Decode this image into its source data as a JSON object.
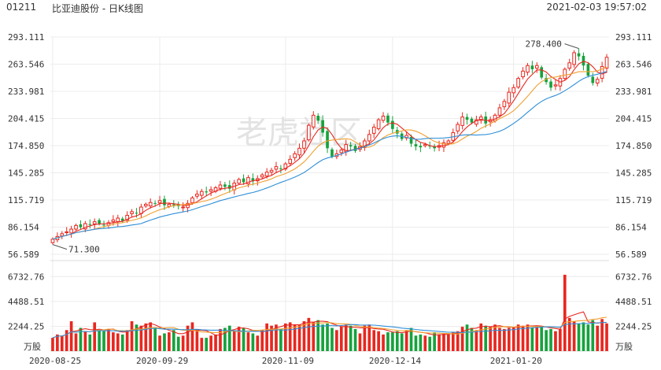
{
  "header": {
    "code": "01211",
    "title": "比亚迪股份 - 日K线图",
    "datetime": "2021-02-03 19:57:02"
  },
  "watermark": "老虎社区",
  "chart_data": [
    {
      "type": "candlestick",
      "y_ticks": [
        "293.111",
        "263.546",
        "233.981",
        "204.415",
        "174.850",
        "145.285",
        "115.719",
        "86.154",
        "56.589"
      ],
      "ylim": [
        56.589,
        293.111
      ],
      "x_ticks": [
        "2020-08-25",
        "2020-09-29",
        "2020-11-09",
        "2020-12-14",
        "2021-01-20"
      ],
      "annotations": {
        "max_label": "278.400",
        "min_label": "71.300"
      },
      "colors": {
        "up": "#e8271f",
        "down": "#16a23d",
        "ma5": "#e8271f",
        "ma10": "#f0a030",
        "ma20": "#2f8fd8"
      },
      "closes": [
        73,
        76,
        79,
        81,
        84,
        88,
        86,
        90,
        89,
        92,
        90,
        88,
        91,
        94,
        96,
        93,
        99,
        103,
        101,
        108,
        111,
        113,
        112,
        115,
        110,
        111,
        110,
        109,
        108,
        112,
        118,
        122,
        125,
        124,
        127,
        129,
        132,
        130,
        128,
        134,
        138,
        135,
        140,
        136,
        139,
        143,
        146,
        148,
        152,
        150,
        155,
        160,
        166,
        172,
        180,
        197,
        208,
        202,
        189,
        172,
        163,
        166,
        170,
        176,
        174,
        169,
        174,
        180,
        187,
        195,
        203,
        207,
        200,
        193,
        188,
        182,
        186,
        177,
        174,
        173,
        176,
        174,
        172,
        175,
        178,
        180,
        189,
        198,
        206,
        203,
        200,
        203,
        206,
        199,
        203,
        208,
        216,
        223,
        233,
        238,
        248,
        256,
        262,
        258,
        262,
        249,
        244,
        238,
        241,
        248,
        258,
        265,
        276,
        272,
        262,
        251,
        243,
        247,
        261,
        271
      ],
      "volumes": [
        1200,
        1500,
        1400,
        1900,
        2700,
        1600,
        2100,
        1800,
        1500,
        2600,
        1900,
        1800,
        2000,
        1700,
        1600,
        1500,
        1900,
        2700,
        2400,
        2300,
        2500,
        2600,
        2100,
        1400,
        1600,
        1700,
        1900,
        1300,
        1400,
        2300,
        2600,
        1900,
        1200,
        1200,
        1400,
        1500,
        2000,
        2100,
        2300,
        1800,
        2200,
        2100,
        1700,
        1600,
        1400,
        1900,
        2500,
        2300,
        2400,
        2000,
        2500,
        2600,
        2400,
        2400,
        2700,
        3000,
        2600,
        2800,
        2400,
        2500,
        2100,
        1900,
        2200,
        2400,
        2300,
        2000,
        1600,
        2300,
        2400,
        1900,
        1800,
        1500,
        1700,
        1700,
        1800,
        1600,
        1900,
        2100,
        1400,
        1500,
        1400,
        1300,
        1700,
        1500,
        1600,
        1500,
        1700,
        1800,
        2200,
        2400,
        2100,
        1900,
        2500,
        2300,
        2200,
        2400,
        2100,
        2000,
        2100,
        2200,
        2400,
        2300,
        2400,
        2100,
        2300,
        2200,
        1900,
        2000,
        1800,
        2000,
        6900,
        3000,
        2700,
        2500,
        2600,
        2400,
        2800,
        2300,
        2900,
        2500
      ]
    }
  ]
}
